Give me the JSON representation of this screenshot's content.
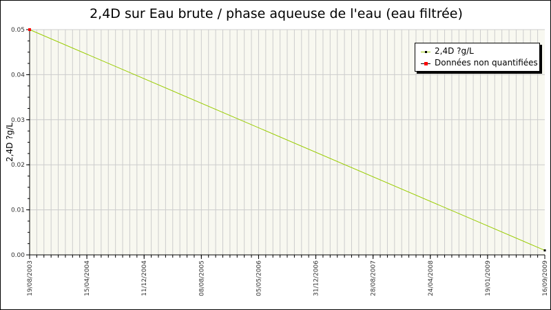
{
  "chart_data": {
    "type": "line",
    "title": "2,4D sur Eau brute / phase aqueuse de l'eau (eau filtrée)",
    "xlabel": "",
    "ylabel": "2,4D ?g/L",
    "ylim": [
      0,
      0.05
    ],
    "yticks": [
      "0.00",
      "0.01",
      "0.02",
      "0.03",
      "0.04",
      "0.05"
    ],
    "xticks": [
      "19/08/2003",
      "15/04/2004",
      "11/12/2004",
      "08/08/2005",
      "05/05/2006",
      "31/12/2006",
      "28/08/2007",
      "24/04/2008",
      "19/01/2009",
      "16/09/2009"
    ],
    "grid": true,
    "legend_position": "top-right",
    "series": [
      {
        "name": "2,4D ?g/L",
        "color": "#99cc00",
        "x": [
          "19/08/2003",
          "16/09/2009"
        ],
        "values": [
          0.05,
          0.001
        ]
      },
      {
        "name": "Données non quantifiées",
        "color": "#ff0000",
        "x": [
          "19/08/2003"
        ],
        "values": [
          0.05
        ]
      }
    ]
  },
  "colors": {
    "plot_bg": "#f8f8f0",
    "grid": "#cccccc"
  }
}
